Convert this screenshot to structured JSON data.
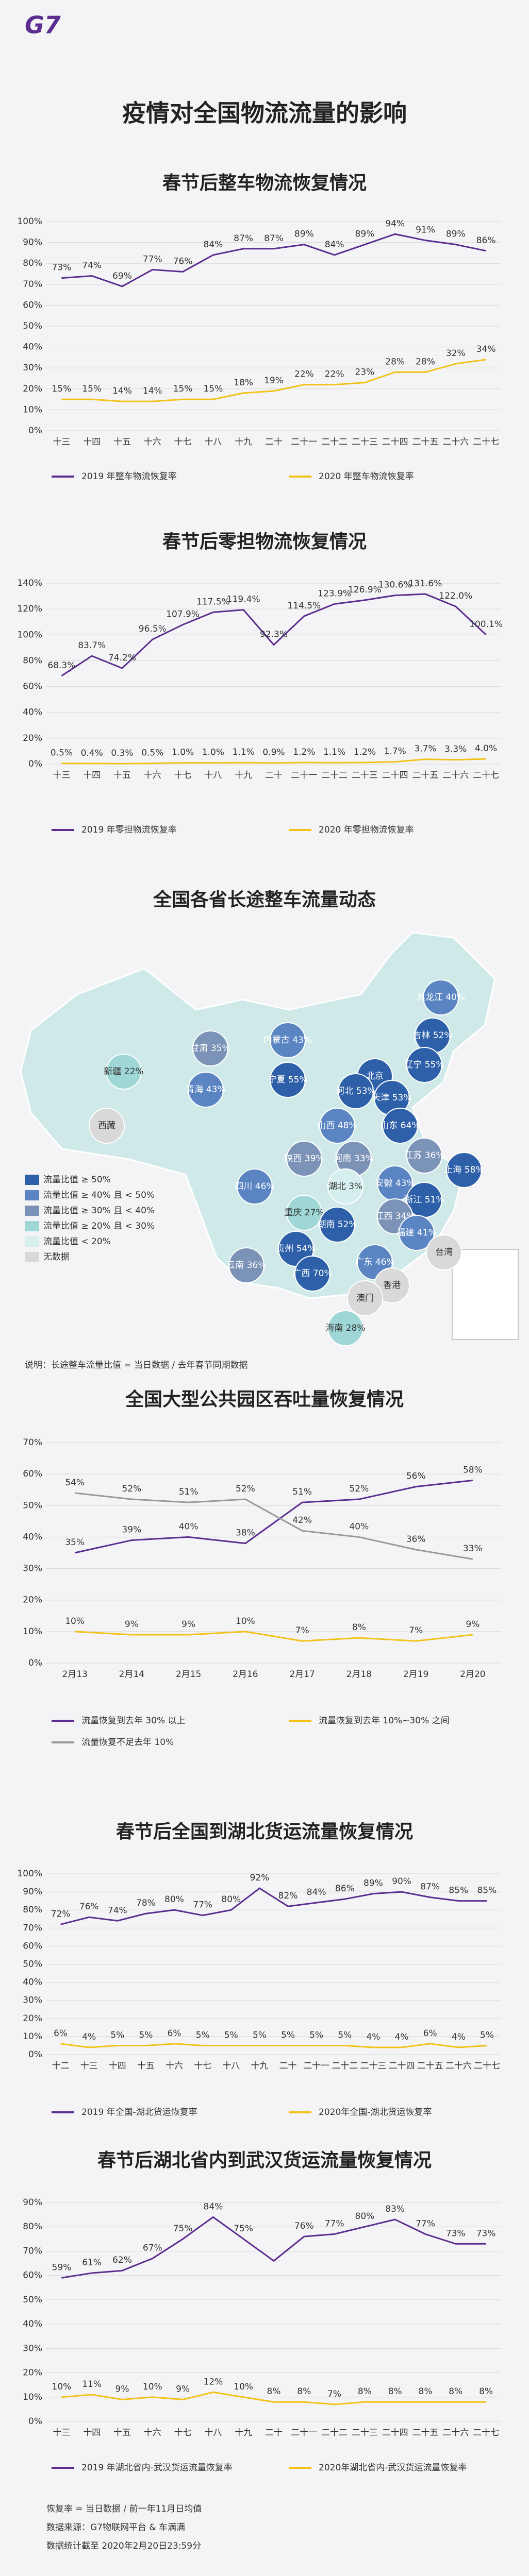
{
  "header": {
    "logo": "G7",
    "title": "疫情对全国物流流量的影响"
  },
  "chart_data": [
    {
      "type": "line",
      "title": "春节后整车物流恢复情况",
      "categories": [
        "十三",
        "十四",
        "十五",
        "十六",
        "十七",
        "十八",
        "十九",
        "二十",
        "二十一",
        "二十二",
        "二十三",
        "二十四",
        "二十五",
        "二十六",
        "二十七"
      ],
      "ylim": [
        0,
        100
      ],
      "yticks": [
        {
          "value": 0,
          "label": "0%"
        },
        {
          "value": 10,
          "label": "10%"
        },
        {
          "value": 20,
          "label": "20%"
        },
        {
          "value": 30,
          "label": "30%"
        },
        {
          "value": 40,
          "label": "40%"
        },
        {
          "value": 50,
          "label": "50%"
        },
        {
          "value": 60,
          "label": "60%"
        },
        {
          "value": 70,
          "label": "70%"
        },
        {
          "value": 80,
          "label": "80%"
        },
        {
          "value": 90,
          "label": "90%"
        },
        {
          "value": 100,
          "label": "100%"
        }
      ],
      "grid": true,
      "series": [
        {
          "name": "2019 年整车物流恢复率",
          "color": "#5b2d90",
          "values": [
            73,
            74,
            69,
            77,
            76,
            84,
            87,
            87,
            89,
            84,
            89,
            94,
            91,
            89,
            86
          ],
          "value_labels": [
            "73%",
            "74%",
            "69%",
            "77%",
            "76%",
            "84%",
            "87%",
            "87%",
            "89%",
            "84%",
            "89%",
            "94%",
            "91%",
            "89%",
            "86%"
          ]
        },
        {
          "name": "2020 年整车物流恢复率",
          "color": "#f2c21a",
          "values": [
            15,
            15,
            14,
            14,
            15,
            15,
            18,
            19,
            22,
            22,
            23,
            28,
            28,
            32,
            34
          ],
          "value_labels": [
            "15%",
            "15%",
            "14%",
            "14%",
            "15%",
            "15%",
            "18%",
            "19%",
            "22%",
            "22%",
            "23%",
            "28%",
            "28%",
            "32%",
            "34%"
          ]
        }
      ]
    },
    {
      "type": "line",
      "title": "春节后零担物流恢复情况",
      "categories": [
        "十三",
        "十四",
        "十五",
        "十六",
        "十七",
        "十八",
        "十九",
        "二十",
        "二十一",
        "二十二",
        "二十三",
        "二十四",
        "二十五",
        "二十六",
        "二十七"
      ],
      "ylim": [
        0,
        140
      ],
      "yticks": [
        {
          "value": 0,
          "label": "0%"
        },
        {
          "value": 20,
          "label": "20%"
        },
        {
          "value": 40,
          "label": "40%"
        },
        {
          "value": 60,
          "label": "60%"
        },
        {
          "value": 80,
          "label": "80%"
        },
        {
          "value": 100,
          "label": "100%"
        },
        {
          "value": 120,
          "label": "120%"
        },
        {
          "value": 140,
          "label": "140%"
        }
      ],
      "grid": true,
      "series": [
        {
          "name": "2019 年零担物流恢复率",
          "color": "#5b2d90",
          "values": [
            68.3,
            83.7,
            74.2,
            96.5,
            107.9,
            117.5,
            119.4,
            92.3,
            114.5,
            123.9,
            126.9,
            130.6,
            131.6,
            122.0,
            100.1
          ],
          "value_labels": [
            "68.3%",
            "83.7%",
            "74.2%",
            "96.5%",
            "107.9%",
            "117.5%",
            "119.4%",
            "92.3%",
            "114.5%",
            "123.9%",
            "126.9%",
            "130.6%",
            "131.6%",
            "122.0%",
            "100.1%"
          ]
        },
        {
          "name": "2020 年零担物流恢复率",
          "color": "#f2c21a",
          "values": [
            0.5,
            0.4,
            0.3,
            0.5,
            1.0,
            1.0,
            1.1,
            0.9,
            1.2,
            1.1,
            1.2,
            1.7,
            3.7,
            3.3,
            4.0
          ],
          "value_labels": [
            "0.5%",
            "0.4%",
            "0.3%",
            "0.5%",
            "1.0%",
            "1.0%",
            "1.1%",
            "0.9%",
            "1.2%",
            "1.1%",
            "1.2%",
            "1.7%",
            "3.7%",
            "3.3%",
            "4.0%"
          ]
        }
      ]
    },
    {
      "type": "line",
      "title": "全国大型公共园区吞吐量恢复情况",
      "categories": [
        "2月13",
        "2月14",
        "2月15",
        "2月16",
        "2月17",
        "2月18",
        "2月19",
        "2月20"
      ],
      "ylim": [
        0,
        70
      ],
      "yticks": [
        {
          "value": 0,
          "label": "0%"
        },
        {
          "value": 10,
          "label": "10%"
        },
        {
          "value": 20,
          "label": "20%"
        },
        {
          "value": 30,
          "label": "30%"
        },
        {
          "value": 40,
          "label": "40%"
        },
        {
          "value": 50,
          "label": "50%"
        },
        {
          "value": 60,
          "label": "60%"
        },
        {
          "value": 70,
          "label": "70%"
        }
      ],
      "grid": true,
      "series": [
        {
          "name": "流量恢复到去年 30% 以上",
          "color": "#5b2d90",
          "values": [
            35,
            39,
            40,
            38,
            51,
            52,
            56,
            58
          ],
          "value_labels": [
            "35%",
            "39%",
            "40%",
            "38%",
            "51%",
            "52%",
            "56%",
            "58%"
          ]
        },
        {
          "name": "流量恢复到去年 10%~30% 之间",
          "color": "#f2c21a",
          "values": [
            10,
            9,
            9,
            10,
            7,
            8,
            7,
            9
          ],
          "value_labels": [
            "10%",
            "9%",
            "9%",
            "10%",
            "7%",
            "8%",
            "7%",
            "9%"
          ]
        },
        {
          "name": "流量恢复不足去年 10%",
          "color": "#999999",
          "values": [
            54,
            52,
            51,
            52,
            42,
            40,
            36,
            33
          ],
          "value_labels": [
            "54%",
            "52%",
            "51%",
            "52%",
            "42%",
            "40%",
            "36%",
            "33%"
          ]
        }
      ]
    },
    {
      "type": "line",
      "title": "春节后全国到湖北货运流量恢复情况",
      "categories": [
        "十二",
        "十三",
        "十四",
        "十五",
        "十六",
        "十七",
        "十八",
        "十九",
        "二十",
        "二十一",
        "二十二",
        "二十三",
        "二十四",
        "二十五",
        "二十六",
        "二十七"
      ],
      "ylim": [
        0,
        100
      ],
      "yticks": [
        {
          "value": 0,
          "label": "0%"
        },
        {
          "value": 10,
          "label": "10%"
        },
        {
          "value": 20,
          "label": "20%"
        },
        {
          "value": 30,
          "label": "30%"
        },
        {
          "value": 40,
          "label": "40%"
        },
        {
          "value": 50,
          "label": "50%"
        },
        {
          "value": 60,
          "label": "60%"
        },
        {
          "value": 70,
          "label": "70%"
        },
        {
          "value": 80,
          "label": "80%"
        },
        {
          "value": 90,
          "label": "90%"
        },
        {
          "value": 100,
          "label": "100%"
        }
      ],
      "grid": true,
      "series": [
        {
          "name": "2019 年全国-湖北货运恢复率",
          "color": "#5b2d90",
          "values": [
            72,
            76,
            74,
            78,
            80,
            77,
            80,
            92,
            82,
            84,
            86,
            89,
            90,
            87,
            85,
            85
          ],
          "value_labels": [
            "72%",
            "76%",
            "74%",
            "78%",
            "80%",
            "77%",
            "80%",
            "92%",
            "82%",
            "84%",
            "86%",
            "89%",
            "90%",
            "87%",
            "85%",
            "85%"
          ]
        },
        {
          "name": "2020年全国-湖北货运恢复率",
          "color": "#f2c21a",
          "values": [
            6,
            4,
            5,
            5,
            6,
            5,
            5,
            5,
            5,
            5,
            5,
            4,
            4,
            6,
            4,
            5
          ],
          "value_labels": [
            "6%",
            "4%",
            "5%",
            "5%",
            "6%",
            "5%",
            "5%",
            "5%",
            "5%",
            "5%",
            "5%",
            "4%",
            "4%",
            "6%",
            "4%",
            "5%"
          ]
        }
      ]
    },
    {
      "type": "line",
      "title": "春节后湖北省内到武汉货运流量恢复情况",
      "categories": [
        "十三",
        "十四",
        "十五",
        "十六",
        "十七",
        "十八",
        "十九",
        "二十",
        "二十一",
        "二十二",
        "二十三",
        "二十四",
        "二十五",
        "二十六",
        "二十七"
      ],
      "ylim": [
        0,
        90
      ],
      "yticks": [
        {
          "value": 0,
          "label": "0%"
        },
        {
          "value": 10,
          "label": "10%"
        },
        {
          "value": 20,
          "label": "20%"
        },
        {
          "value": 30,
          "label": "30%"
        },
        {
          "value": 40,
          "label": "40%"
        },
        {
          "value": 50,
          "label": "50%"
        },
        {
          "value": 60,
          "label": "60%"
        },
        {
          "value": 70,
          "label": "70%"
        },
        {
          "value": 80,
          "label": "80%"
        },
        {
          "value": 90,
          "label": "90%"
        }
      ],
      "grid": true,
      "series": [
        {
          "name": "2019 年湖北省内-武汉货运流量恢复率",
          "color": "#5b2d90",
          "values": [
            59,
            61,
            62,
            67,
            75,
            84,
            75,
            66,
            76,
            77,
            80,
            83,
            77,
            73,
            73
          ],
          "value_labels": [
            "59%",
            "61%",
            "62%",
            "67%",
            "75%",
            "84%",
            "75%",
            null,
            "76%",
            "77%",
            "80%",
            "83%",
            "77%",
            "73%",
            "73%"
          ]
        },
        {
          "name": "2020年湖北省内-武汉货运流量恢复率",
          "color": "#f2c21a",
          "values": [
            10,
            11,
            9,
            10,
            9,
            12,
            10,
            8,
            8,
            7,
            8,
            8,
            8,
            8,
            8
          ],
          "value_labels": [
            "10%",
            "11%",
            "9%",
            "10%",
            "9%",
            "12%",
            "10%",
            "8%",
            "8%",
            "7%",
            "8%",
            "8%",
            "8%",
            "8%",
            "8%"
          ]
        }
      ]
    }
  ],
  "map": {
    "title": "全国各省长途整车流量动态",
    "legend": [
      {
        "label": "流量比值 ≥ 50%",
        "color": "#2d60a8"
      },
      {
        "label": "流量比值 ≥ 40% 且 < 50%",
        "color": "#5a85c2"
      },
      {
        "label": "流量比值 ≥ 30% 且 < 40%",
        "color": "#7c93b8"
      },
      {
        "label": "流量比值 ≥ 20% 且 < 30%",
        "color": "#9fd6d6"
      },
      {
        "label": "流量比值 < 20%",
        "color": "#d5efee"
      },
      {
        "label": "无数据",
        "color": "#d9d9d9"
      }
    ],
    "note": "说明：长途整车流量比值 = 当日数据 / 去年春节同期数据",
    "regions": [
      {
        "label": "新疆 22%",
        "tier": 3
      },
      {
        "label": "西藏",
        "tier": 5
      },
      {
        "label": "青海 43%",
        "tier": 1
      },
      {
        "label": "甘肃 35%",
        "tier": 2
      },
      {
        "label": "内蒙古 43%",
        "tier": 1
      },
      {
        "label": "黑龙江 40%",
        "tier": 1
      },
      {
        "label": "吉林 52%",
        "tier": 0
      },
      {
        "label": "辽宁 55%",
        "tier": 0
      },
      {
        "label": "北京",
        "tier": 0
      },
      {
        "label": "天津 53%",
        "tier": 0
      },
      {
        "label": "河北 53%",
        "tier": 0
      },
      {
        "label": "宁夏 55%",
        "tier": 0
      },
      {
        "label": "山西 48%",
        "tier": 1
      },
      {
        "label": "山东 64%",
        "tier": 0
      },
      {
        "label": "陕西 39%",
        "tier": 2
      },
      {
        "label": "河南 33%",
        "tier": 2
      },
      {
        "label": "江苏 36%",
        "tier": 2
      },
      {
        "label": "上海 58%",
        "tier": 0
      },
      {
        "label": "安徽 43%",
        "tier": 1
      },
      {
        "label": "湖北 3%",
        "tier": 4
      },
      {
        "label": "四川 46%",
        "tier": 1
      },
      {
        "label": "重庆 27%",
        "tier": 3
      },
      {
        "label": "浙江 51%",
        "tier": 0
      },
      {
        "label": "湖南 52%",
        "tier": 0
      },
      {
        "label": "江西 34%",
        "tier": 2
      },
      {
        "label": "贵州 54%",
        "tier": 0
      },
      {
        "label": "福建 41%",
        "tier": 1
      },
      {
        "label": "云南 36%",
        "tier": 2
      },
      {
        "label": "广西 70%",
        "tier": 0
      },
      {
        "label": "广东 46%",
        "tier": 1
      },
      {
        "label": "香港",
        "tier": 5
      },
      {
        "label": "澳门",
        "tier": 5
      },
      {
        "label": "海南 28%",
        "tier": 3
      },
      {
        "label": "台湾",
        "tier": 5
      }
    ]
  },
  "footer": {
    "lines": [
      "恢复率 = 当日数据 / 前一年11月日均值",
      "数据来源：G7物联网平台 & 车满满",
      "数据统计截至 2020年2月20日23:59分"
    ]
  }
}
